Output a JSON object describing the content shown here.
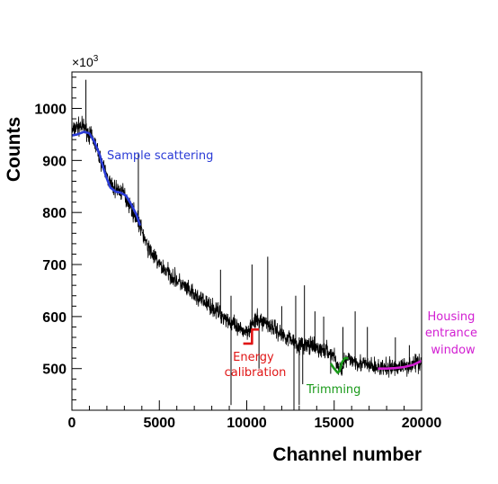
{
  "chart_data": {
    "type": "line",
    "title": "",
    "xlabel": "Channel number",
    "ylabel": "Counts",
    "y_multiplier_label": "×10",
    "y_multiplier_exponent": "3",
    "xlim": [
      0,
      20000
    ],
    "ylim": [
      420,
      1070
    ],
    "xticks": [
      0,
      5000,
      10000,
      15000,
      20000
    ],
    "yticks": [
      500,
      600,
      700,
      800,
      900,
      1000
    ],
    "grid": false,
    "legend": "none",
    "spectrum": {
      "color": "#000000",
      "x": [
        0,
        300,
        700,
        1000,
        1300,
        1600,
        2000,
        2300,
        2600,
        3000,
        3300,
        3700,
        4000,
        4300,
        4700,
        5000,
        5500,
        6000,
        6500,
        7000,
        7500,
        8000,
        8500,
        9000,
        9500,
        10000,
        10300,
        10600,
        11000,
        11500,
        12000,
        12500,
        13000,
        13500,
        14000,
        14500,
        15000,
        15300,
        15600,
        16000,
        16500,
        17000,
        17500,
        18000,
        18500,
        19000,
        19500,
        20000
      ],
      "y": [
        955,
        965,
        965,
        950,
        935,
        905,
        870,
        848,
        845,
        835,
        815,
        790,
        765,
        735,
        715,
        700,
        685,
        670,
        655,
        640,
        630,
        618,
        605,
        592,
        575,
        572,
        585,
        593,
        590,
        580,
        565,
        558,
        545,
        545,
        538,
        535,
        525,
        495,
        515,
        518,
        510,
        505,
        502,
        500,
        503,
        505,
        508,
        515
      ],
      "noise": 12,
      "spikes": [
        {
          "x": 800,
          "y": 1055
        },
        {
          "x": 3100,
          "y": 810
        },
        {
          "x": 3800,
          "y": 915
        },
        {
          "x": 8500,
          "y": 690
        },
        {
          "x": 9100,
          "y": 640
        },
        {
          "x": 10300,
          "y": 700
        },
        {
          "x": 11200,
          "y": 715
        },
        {
          "x": 12000,
          "y": 620
        },
        {
          "x": 12800,
          "y": 640
        },
        {
          "x": 13300,
          "y": 660
        },
        {
          "x": 13900,
          "y": 610
        },
        {
          "x": 14400,
          "y": 600
        },
        {
          "x": 15500,
          "y": 580
        },
        {
          "x": 16200,
          "y": 610
        },
        {
          "x": 16900,
          "y": 580
        },
        {
          "x": 18500,
          "y": 560
        },
        {
          "x": 19300,
          "y": 545
        }
      ],
      "dips": [
        {
          "x": 9100,
          "y": 430
        },
        {
          "x": 12700,
          "y": 420
        },
        {
          "x": 13000,
          "y": 430
        },
        {
          "x": 13200,
          "y": 470
        },
        {
          "x": 10700,
          "y": 500
        },
        {
          "x": 14800,
          "y": 490
        }
      ]
    },
    "series": [
      {
        "color": "#2a3bd6",
        "x": [
          0,
          300,
          700,
          1000,
          1300,
          1600,
          1800,
          2000,
          2200,
          2500,
          2800,
          3100,
          3400,
          3700,
          3900
        ],
        "y": [
          948,
          950,
          955,
          952,
          935,
          910,
          885,
          865,
          848,
          840,
          838,
          832,
          815,
          795,
          775
        ]
      },
      {
        "color": "#e01515",
        "x": [
          9800,
          10200,
          10300,
          10300,
          10700
        ],
        "y": [
          548,
          548,
          548,
          575,
          575
        ]
      },
      {
        "color": "#1a9a1a",
        "x": [
          14800,
          15000,
          15200,
          15300,
          15450,
          15600,
          15800
        ],
        "y": [
          510,
          500,
          492,
          495,
          512,
          520,
          520
        ]
      },
      {
        "color": "#d21ed2",
        "x": [
          17500,
          18000,
          18500,
          19000,
          19500,
          20000
        ],
        "y": [
          500,
          500,
          501,
          503,
          507,
          515
        ]
      }
    ],
    "annotations": [
      {
        "text": "Sample scattering",
        "color": "#2a3bd6"
      },
      {
        "lines": [
          "Energy",
          "calibration"
        ],
        "color": "#e01515"
      },
      {
        "text": "Trimming",
        "color": "#1a9a1a"
      },
      {
        "lines": [
          "Housing",
          "entrance",
          "window"
        ],
        "color": "#d21ed2"
      }
    ]
  }
}
